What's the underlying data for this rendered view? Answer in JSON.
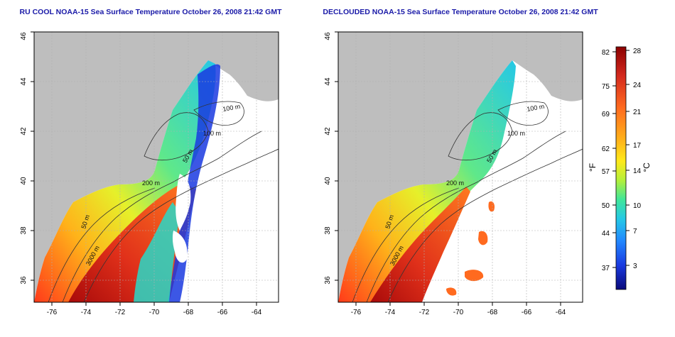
{
  "panels": [
    {
      "id": "raw",
      "title": "RU COOL NOAA-15 Sea Surface Temperature October 26, 2008 21:42 GMT"
    },
    {
      "id": "declouded",
      "title": "DECLOUDED NOAA-15 Sea Surface Temperature October 26, 2008 21:42 GMT"
    }
  ],
  "axes": {
    "lon_ticks": [
      "-76",
      "-74",
      "-72",
      "-70",
      "-68",
      "-66",
      "-64"
    ],
    "lat_ticks": [
      "36",
      "38",
      "40",
      "42",
      "44",
      "46"
    ]
  },
  "contour_labels": [
    "100 m",
    "100 m",
    "50 m",
    "200 m",
    "50 m",
    "3000 m"
  ],
  "colorbar": {
    "fahrenheit_label": "°F",
    "celsius_label": "°C",
    "fahrenheit_ticks": [
      "82",
      "75",
      "69",
      "62",
      "57",
      "50",
      "44",
      "37"
    ],
    "celsius_ticks": [
      "28",
      "24",
      "21",
      "17",
      "14",
      "10",
      "7",
      "3"
    ]
  },
  "colors": {
    "land": "#bebebe",
    "cloud_white": "#ffffff",
    "title_blue": "#1a1aa8",
    "scale": [
      "#8b0000",
      "#d42a1e",
      "#ff5a1f",
      "#ffa21a",
      "#ffe31a",
      "#c8f02a",
      "#5ff07a",
      "#27d9c8",
      "#22aaff",
      "#2255ff",
      "#1515c8",
      "#0a0a8a"
    ]
  }
}
